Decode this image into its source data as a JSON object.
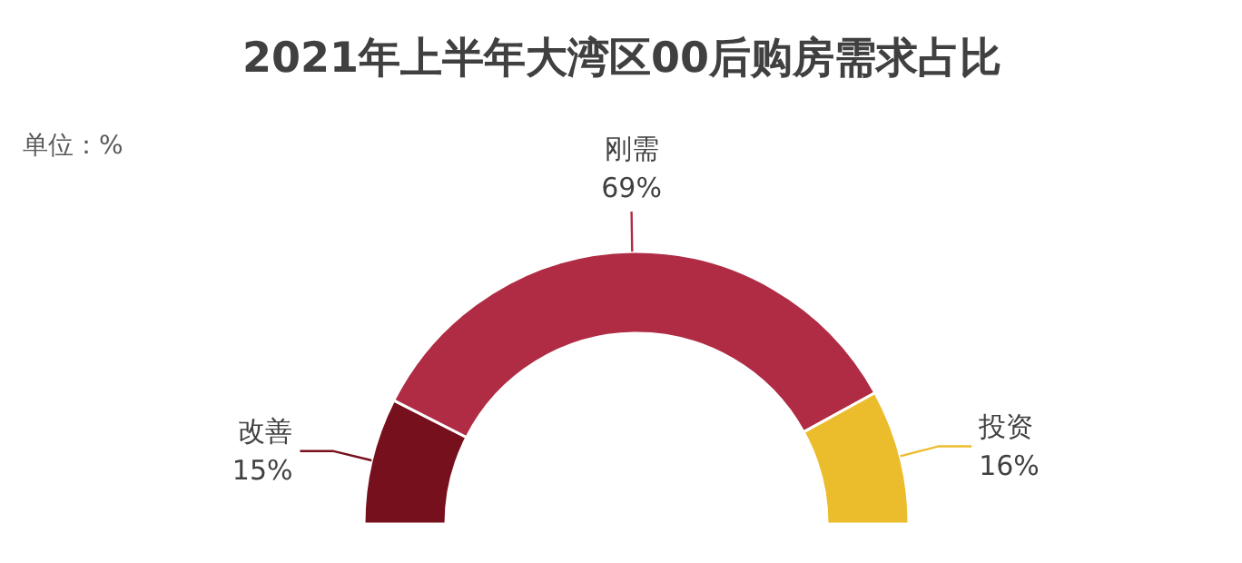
{
  "chart_data": {
    "type": "donut",
    "title": "2021年上半年大湾区00后购房需求占比",
    "annotations": [
      "单位：%"
    ],
    "categories": [
      "改善",
      "刚需",
      "投资"
    ],
    "values": [
      15,
      69,
      16
    ],
    "value_labels": [
      "15%",
      "69%",
      "16%"
    ],
    "colors": [
      "#77101d",
      "#b02c44",
      "#ebbd2d"
    ]
  }
}
